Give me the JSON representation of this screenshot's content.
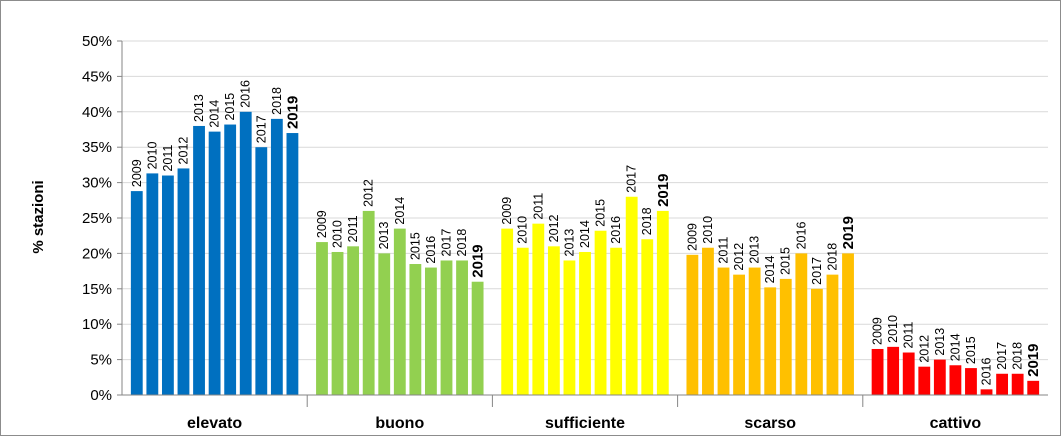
{
  "chart_data": {
    "type": "bar",
    "title": "",
    "xlabel": "",
    "ylabel": "% stazioni",
    "ylim": [
      0,
      50
    ],
    "ytick_step": 5,
    "ytick_labels": [
      "0%",
      "5%",
      "10%",
      "15%",
      "20%",
      "25%",
      "30%",
      "35%",
      "40%",
      "45%",
      "50%"
    ],
    "grid": true,
    "legend": "none",
    "categories": [
      "elevato",
      "buono",
      "sufficiente",
      "scarso",
      "cattivo"
    ],
    "years": [
      "2009",
      "2010",
      "2011",
      "2012",
      "2013",
      "2014",
      "2015",
      "2016",
      "2017",
      "2018",
      "2019"
    ],
    "highlight_year": "2019",
    "groups": [
      {
        "category": "elevato",
        "color": "#0070c0",
        "values": [
          28.8,
          31.3,
          31.0,
          32.0,
          38.0,
          37.2,
          38.2,
          40.0,
          35.0,
          39.0,
          37.0
        ]
      },
      {
        "category": "buono",
        "color": "#92d050",
        "values": [
          21.6,
          20.2,
          21.0,
          26.0,
          20.0,
          23.5,
          18.5,
          18.0,
          19.0,
          19.0,
          16.0
        ]
      },
      {
        "category": "sufficiente",
        "color": "#ffff00",
        "values": [
          23.5,
          20.8,
          24.2,
          21.0,
          19.0,
          20.2,
          23.2,
          20.8,
          28.0,
          22.0,
          26.0
        ]
      },
      {
        "category": "scarso",
        "color": "#ffc000",
        "values": [
          19.8,
          20.8,
          18.0,
          17.0,
          18.0,
          15.2,
          16.4,
          20.0,
          15.0,
          17.0,
          20.0
        ]
      },
      {
        "category": "cattivo",
        "color": "#ff0000",
        "values": [
          6.5,
          6.8,
          6.0,
          4.0,
          5.0,
          4.2,
          3.8,
          0.8,
          3.0,
          3.0,
          2.0
        ]
      }
    ]
  }
}
